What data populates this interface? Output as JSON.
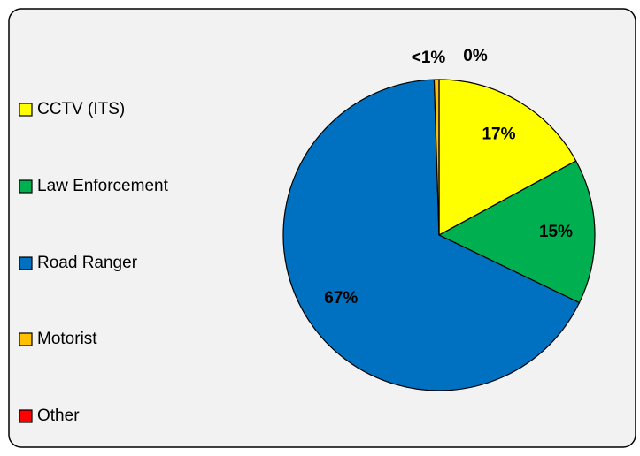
{
  "chart_data": {
    "type": "pie",
    "categories": [
      "CCTV (ITS)",
      "Law Enforcement",
      "Road Ranger",
      "Motorist",
      "Other"
    ],
    "values": [
      17,
      15,
      67,
      0.5,
      0
    ],
    "value_labels": [
      "17%",
      "15%",
      "67%",
      "<1%",
      "0%"
    ],
    "colors": [
      "#ffff00",
      "#00b050",
      "#0070c0",
      "#ffc000",
      "#ff0000"
    ],
    "legend": "left"
  }
}
